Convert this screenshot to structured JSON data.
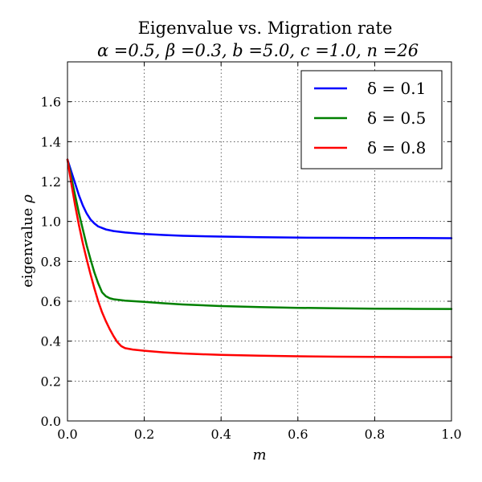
{
  "chart_data": {
    "type": "line",
    "title": "Eigenvalue vs. Migration rate",
    "subtitle": "α =0.5, β =0.3, b =5.0, c =1.0, n =26",
    "xlabel": "m",
    "ylabel_prefix": "eigenvalue",
    "ylabel_symbol": "ρ",
    "xlim": [
      0,
      1
    ],
    "ylim": [
      0,
      1.8
    ],
    "xticks": [
      0.0,
      0.2,
      0.4,
      0.6,
      0.8,
      1.0
    ],
    "xtick_labels": [
      "0.0",
      "0.2",
      "0.4",
      "0.6",
      "0.8",
      "1.0"
    ],
    "yticks": [
      0.0,
      0.2,
      0.4,
      0.6,
      0.8,
      1.0,
      1.2,
      1.4,
      1.6
    ],
    "ytick_labels": [
      "0.0",
      "0.2",
      "0.4",
      "0.6",
      "0.8",
      "1.0",
      "1.2",
      "1.4",
      "1.6"
    ],
    "grid": true,
    "legend_position": "top-right",
    "series": [
      {
        "name": "δ = 0.1",
        "color": "#0000ff",
        "x": [
          0.0,
          0.01,
          0.02,
          0.03,
          0.04,
          0.05,
          0.06,
          0.07,
          0.08,
          0.1,
          0.12,
          0.15,
          0.2,
          0.25,
          0.3,
          0.4,
          0.5,
          0.6,
          0.7,
          0.8,
          0.9,
          1.0
        ],
        "y": [
          1.31,
          1.25,
          1.19,
          1.13,
          1.08,
          1.04,
          1.01,
          0.99,
          0.975,
          0.96,
          0.952,
          0.945,
          0.937,
          0.932,
          0.928,
          0.924,
          0.921,
          0.919,
          0.918,
          0.917,
          0.917,
          0.916
        ]
      },
      {
        "name": "δ = 0.5",
        "color": "#008000",
        "x": [
          0.0,
          0.01,
          0.02,
          0.03,
          0.04,
          0.05,
          0.06,
          0.07,
          0.08,
          0.09,
          0.1,
          0.11,
          0.12,
          0.15,
          0.2,
          0.25,
          0.3,
          0.4,
          0.5,
          0.6,
          0.7,
          0.8,
          0.9,
          1.0
        ],
        "y": [
          1.31,
          1.22,
          1.13,
          1.04,
          0.96,
          0.88,
          0.81,
          0.745,
          0.69,
          0.645,
          0.625,
          0.615,
          0.61,
          0.603,
          0.597,
          0.59,
          0.584,
          0.576,
          0.571,
          0.567,
          0.565,
          0.563,
          0.562,
          0.561
        ]
      },
      {
        "name": "δ = 0.8",
        "color": "#ff0000",
        "x": [
          0.0,
          0.01,
          0.02,
          0.03,
          0.04,
          0.05,
          0.06,
          0.07,
          0.08,
          0.09,
          0.1,
          0.11,
          0.12,
          0.13,
          0.14,
          0.15,
          0.17,
          0.2,
          0.25,
          0.3,
          0.4,
          0.5,
          0.6,
          0.7,
          0.8,
          0.9,
          1.0
        ],
        "y": [
          1.31,
          1.19,
          1.08,
          0.98,
          0.89,
          0.81,
          0.735,
          0.665,
          0.6,
          0.545,
          0.5,
          0.46,
          0.425,
          0.395,
          0.375,
          0.365,
          0.358,
          0.352,
          0.344,
          0.338,
          0.331,
          0.327,
          0.324,
          0.322,
          0.321,
          0.32,
          0.32
        ]
      }
    ]
  }
}
